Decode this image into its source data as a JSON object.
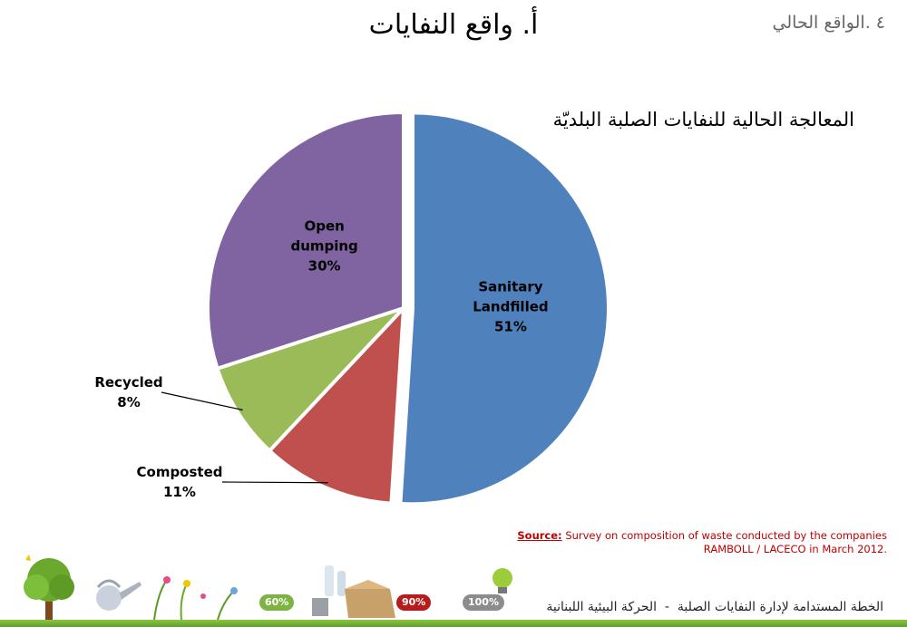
{
  "header": {
    "section_label": "٤ .الواقع الحالي",
    "title": "أ. واقع النفايات"
  },
  "chart_data": {
    "type": "pie",
    "title": "المعالجة الحالية للنفايات الصلبة البلديّة",
    "start_angle_deg": 0,
    "direction": "clockwise",
    "legend": "none",
    "slices": [
      {
        "label": "Sanitary Landfilled",
        "value": 51,
        "display": "51%",
        "color": "#4f81bd",
        "exploded": true,
        "label_position": "inside",
        "label_lines": [
          "Sanitary",
          "Landfilled",
          "51%"
        ]
      },
      {
        "label": "Composted",
        "value": 11,
        "display": "11%",
        "color": "#c0504d",
        "exploded": false,
        "label_position": "outside",
        "label_lines": [
          "Composted",
          "11%"
        ]
      },
      {
        "label": "Recycled",
        "value": 8,
        "display": "8%",
        "color": "#9bbb59",
        "exploded": false,
        "label_position": "outside",
        "label_lines": [
          "Recycled",
          "8%"
        ]
      },
      {
        "label": "Open dumping",
        "value": 30,
        "display": "30%",
        "color": "#8064a2",
        "exploded": false,
        "label_position": "inside",
        "label_lines": [
          "Open",
          "dumping",
          "30%"
        ]
      }
    ]
  },
  "source": {
    "key": "Source:",
    "text": "Survey on composition of waste conducted by the companies RAMBOLL / LACECO in March 2012."
  },
  "footer": {
    "text": "الخطة المستدامة لإدارة النفايات الصلبة  -  الحركة البيئية اللبنانية",
    "tags": [
      "60%",
      "90%",
      "100%"
    ]
  }
}
